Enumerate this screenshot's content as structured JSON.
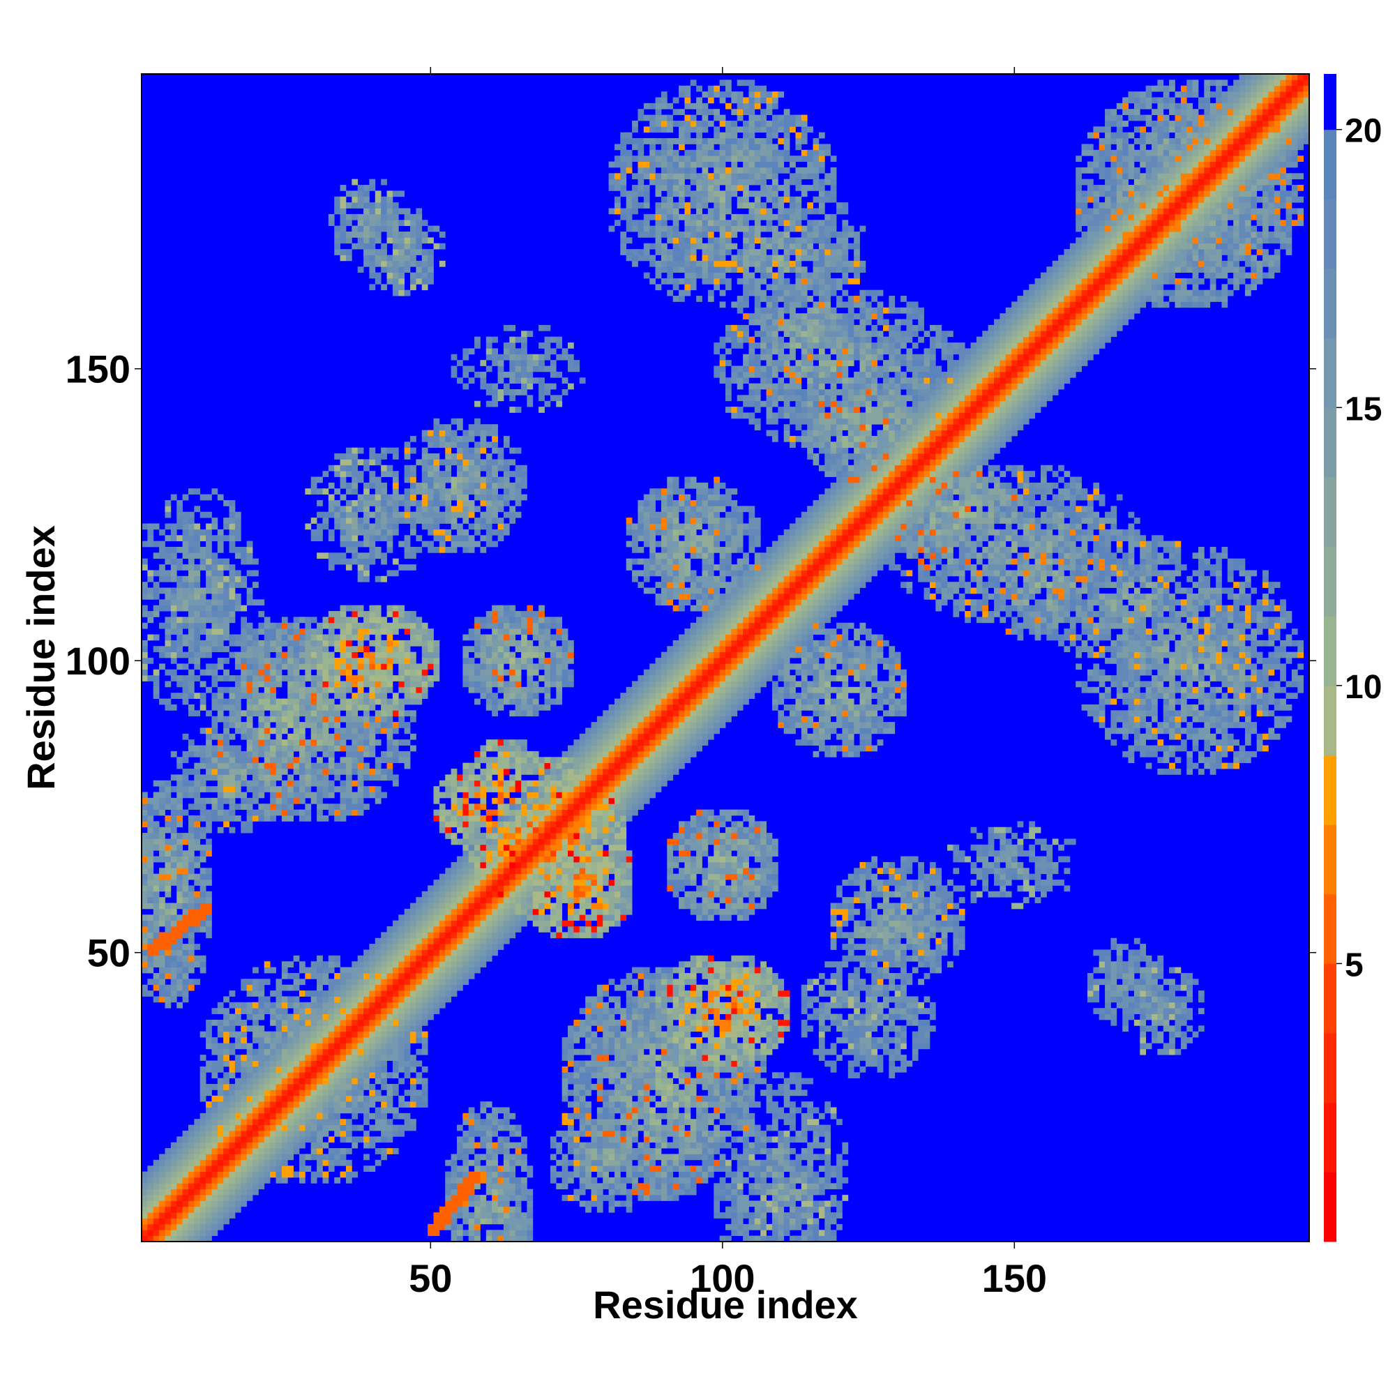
{
  "chart_data": {
    "type": "heatmap",
    "xlabel": "Residue index",
    "ylabel": "Residue index",
    "xlim": [
      1,
      200
    ],
    "ylim": [
      1,
      200
    ],
    "x_ticks": [
      50,
      100,
      150
    ],
    "y_ticks": [
      50,
      100,
      150
    ],
    "colorbar": {
      "range": [
        0,
        21
      ],
      "ticks": [
        5,
        10,
        15,
        20
      ],
      "bands": [
        {
          "from": 0,
          "to": 1.25,
          "color": "#ff0000"
        },
        {
          "from": 1.25,
          "to": 2.5,
          "color": "#ff1500"
        },
        {
          "from": 2.5,
          "to": 3.75,
          "color": "#ff2b00"
        },
        {
          "from": 3.75,
          "to": 5.0,
          "color": "#ff4000"
        },
        {
          "from": 5.0,
          "to": 6.25,
          "color": "#ff6000"
        },
        {
          "from": 6.25,
          "to": 7.5,
          "color": "#ff8000"
        },
        {
          "from": 7.5,
          "to": 8.75,
          "color": "#ffa000"
        },
        {
          "from": 8.75,
          "to": 10.0,
          "color": "#a8b888"
        },
        {
          "from": 10.0,
          "to": 11.25,
          "color": "#98b490"
        },
        {
          "from": 11.25,
          "to": 12.5,
          "color": "#90ac98"
        },
        {
          "from": 12.5,
          "to": 13.75,
          "color": "#88a4a0"
        },
        {
          "from": 13.75,
          "to": 15.0,
          "color": "#7c9ca8"
        },
        {
          "from": 15.0,
          "to": 16.25,
          "color": "#7498b0"
        },
        {
          "from": 16.25,
          "to": 17.5,
          "color": "#6c90b4"
        },
        {
          "from": 17.5,
          "to": 18.75,
          "color": "#6488b8"
        },
        {
          "from": 18.75,
          "to": 20.0,
          "color": "#5c84bc"
        },
        {
          "from": 20.0,
          "to": 21.0,
          "color": "#0000ff"
        }
      ]
    },
    "contact_map": {
      "n_residues": 200,
      "background_value": 21,
      "diagonal_band": [
        {
          "offset": 0,
          "value": 1.5
        },
        {
          "offset": 1,
          "value": 3.0
        },
        {
          "offset": 2,
          "value": 5.5
        },
        {
          "offset": 3,
          "value": 7.0
        },
        {
          "offset": 4,
          "value": 9.5
        },
        {
          "offset": 5,
          "value": 10.5
        },
        {
          "offset": 6,
          "value": 11.5
        },
        {
          "offset": 7,
          "value": 12.5
        },
        {
          "offset": 8,
          "value": 14.0
        }
      ],
      "contact_regions": [
        {
          "center": [
            30,
            90
          ],
          "radius": [
            18,
            18
          ],
          "value": 13
        },
        {
          "center": [
            40,
            100
          ],
          "radius": [
            12,
            10
          ],
          "value": 8
        },
        {
          "center": [
            15,
            80
          ],
          "radius": [
            10,
            10
          ],
          "value": 14
        },
        {
          "center": [
            70,
            70
          ],
          "radius": [
            14,
            14
          ],
          "value": 7
        },
        {
          "center": [
            75,
            60
          ],
          "radius": [
            10,
            8
          ],
          "value": 8
        },
        {
          "center": [
            63,
            77
          ],
          "radius": [
            8,
            10
          ],
          "value": 8
        },
        {
          "center": [
            65,
            100
          ],
          "radius": [
            10,
            10
          ],
          "value": 12
        },
        {
          "center": [
            100,
            65
          ],
          "radius": [
            10,
            10
          ],
          "value": 12
        },
        {
          "center": [
            90,
            25
          ],
          "radius": [
            12,
            18
          ],
          "value": 12
        },
        {
          "center": [
            80,
            15
          ],
          "radius": [
            10,
            10
          ],
          "value": 14
        },
        {
          "center": [
            95,
            120
          ],
          "radius": [
            12,
            12
          ],
          "value": 13
        },
        {
          "center": [
            120,
            95
          ],
          "radius": [
            12,
            12
          ],
          "value": 13
        },
        {
          "center": [
            100,
            180
          ],
          "radius": [
            20,
            20
          ],
          "value": 14
        },
        {
          "center": [
            115,
            155
          ],
          "radius": [
            12,
            12
          ],
          "value": 13
        },
        {
          "center": [
            125,
            140
          ],
          "radius": [
            12,
            10
          ],
          "value": 12
        },
        {
          "center": [
            150,
            120
          ],
          "radius": [
            22,
            14
          ],
          "value": 14
        },
        {
          "center": [
            170,
            110
          ],
          "radius": [
            15,
            12
          ],
          "value": 14
        },
        {
          "center": [
            180,
            180
          ],
          "radius": [
            20,
            20
          ],
          "value": 13
        },
        {
          "center": [
            40,
            175
          ],
          "radius": [
            8,
            8
          ],
          "value": 15
        },
        {
          "center": [
            170,
            45
          ],
          "radius": [
            8,
            8
          ],
          "value": 15
        },
        {
          "center": [
            125,
            40
          ],
          "radius": [
            12,
            12
          ],
          "value": 15
        },
        {
          "center": [
            30,
            30
          ],
          "radius": [
            20,
            20
          ],
          "value": 14
        },
        {
          "center": [
            5,
            60
          ],
          "radius": [
            8,
            20
          ],
          "value": 13
        },
        {
          "center": [
            55,
            130
          ],
          "radius": [
            12,
            12
          ],
          "value": 14
        },
        {
          "center": [
            130,
            55
          ],
          "radius": [
            10,
            10
          ],
          "value": 15
        },
        {
          "center": [
            10,
            110
          ],
          "radius": [
            12,
            20
          ],
          "value": 15
        },
        {
          "center": [
            150,
            65
          ],
          "radius": [
            12,
            8
          ],
          "value": 16
        }
      ],
      "contact_lines": [
        {
          "from": [
            2,
            50
          ],
          "to": [
            12,
            58
          ],
          "value": 6
        },
        {
          "from": [
            50,
            2
          ],
          "to": [
            58,
            12
          ],
          "value": 6
        }
      ]
    }
  }
}
